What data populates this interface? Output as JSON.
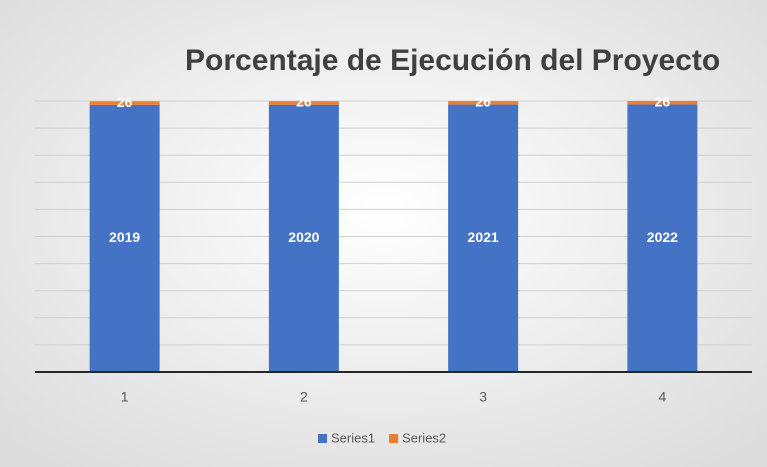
{
  "chart_data": {
    "type": "stacked_bar",
    "title": "Porcentaje de Ejecución del Proyecto",
    "categories": [
      "1",
      "2",
      "3",
      "4"
    ],
    "series": [
      {
        "name": "Series1",
        "color": "#4472c4",
        "values": [
          2019,
          2020,
          2021,
          2022
        ]
      },
      {
        "name": "Series2",
        "color": "#ed7d31",
        "values": [
          26,
          26,
          26,
          26
        ]
      }
    ],
    "legend": "bottom",
    "grid": true
  }
}
